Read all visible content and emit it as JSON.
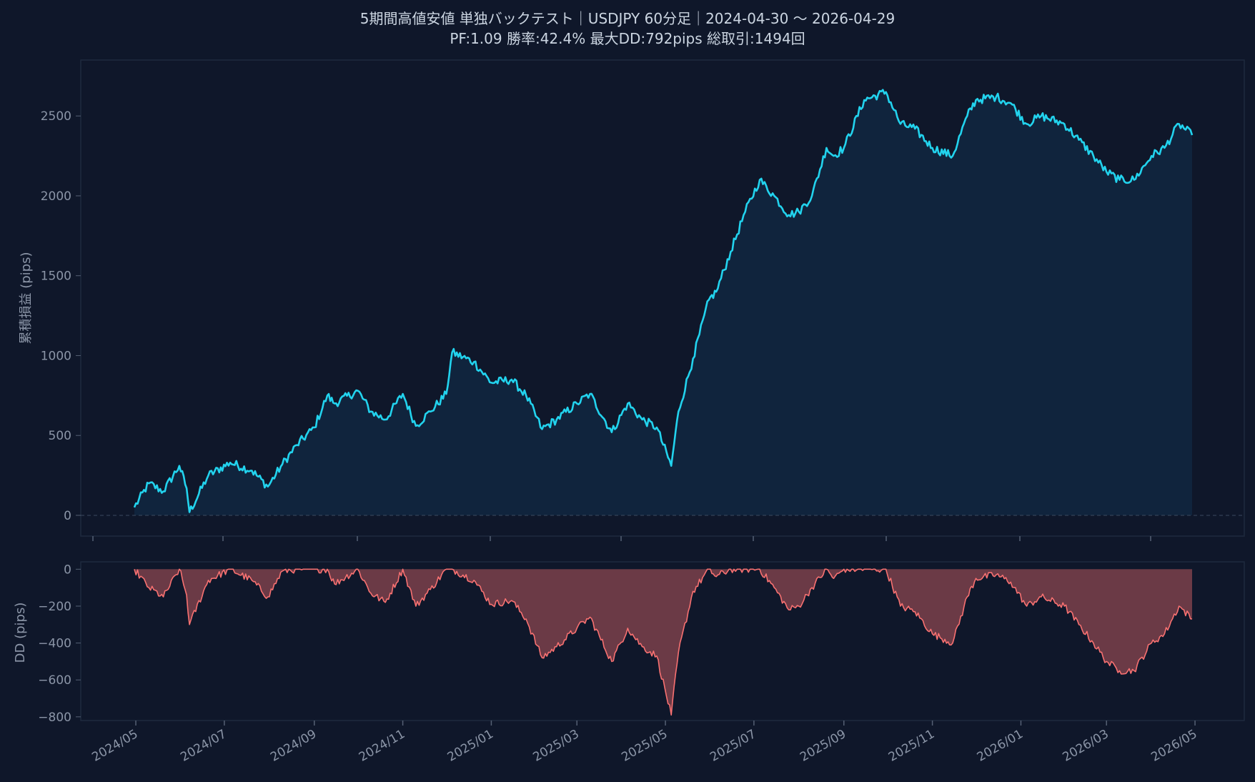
{
  "header": {
    "title": "5期間高値安値 単独バックテスト｜USDJPY 60分足｜2024-04-30 〜 2026-04-29",
    "subtitle": "PF:1.09  勝率:42.4%  最大DD:792pips  総取引:1494回"
  },
  "colors": {
    "background": "#0f172a",
    "equity_line": "#22d3ee",
    "equity_fill": "#10243d",
    "dd_line": "#f87171",
    "dd_fill": "#6b3a46",
    "frame": "#1e2a3e",
    "tick_text": "#8b95a7",
    "zero_line": "#3b4a60"
  },
  "chart_data": [
    {
      "type": "area",
      "name": "equity",
      "ylabel": "累積損益 (pips)",
      "ylim": [
        -130,
        2850
      ],
      "yticks": [
        0,
        500,
        1000,
        1500,
        2000,
        2500
      ],
      "ytick_labels": [
        "0",
        "500",
        "1000",
        "1500",
        "2000",
        "2500"
      ],
      "x": [
        "2024-04-30",
        "2024-05-10",
        "2024-05-20",
        "2024-05-31",
        "2024-06-05",
        "2024-06-07",
        "2024-06-20",
        "2024-07-05",
        "2024-07-20",
        "2024-07-31",
        "2024-08-10",
        "2024-08-20",
        "2024-09-01",
        "2024-09-10",
        "2024-09-15",
        "2024-10-01",
        "2024-10-10",
        "2024-10-20",
        "2024-11-01",
        "2024-11-10",
        "2024-11-20",
        "2024-12-01",
        "2024-12-05",
        "2024-12-20",
        "2025-01-01",
        "2025-01-15",
        "2025-01-25",
        "2025-02-05",
        "2025-02-15",
        "2025-03-01",
        "2025-03-10",
        "2025-03-25",
        "2025-04-05",
        "2025-04-15",
        "2025-04-25",
        "2025-05-05",
        "2025-05-10",
        "2025-05-20",
        "2025-05-31",
        "2025-06-05",
        "2025-06-15",
        "2025-06-25",
        "2025-07-05",
        "2025-07-15",
        "2025-07-25",
        "2025-08-01",
        "2025-08-10",
        "2025-08-20",
        "2025-08-25",
        "2025-09-01",
        "2025-09-15",
        "2025-09-30",
        "2025-10-10",
        "2025-10-20",
        "2025-11-01",
        "2025-11-15",
        "2025-11-25",
        "2025-12-01",
        "2025-12-15",
        "2025-12-25",
        "2026-01-05",
        "2026-01-15",
        "2026-01-31",
        "2026-02-10",
        "2026-02-20",
        "2026-03-01",
        "2026-03-10",
        "2026-03-20",
        "2026-04-01",
        "2026-04-10",
        "2026-04-20",
        "2026-04-29"
      ],
      "values": [
        50,
        200,
        150,
        310,
        170,
        20,
        250,
        330,
        280,
        180,
        320,
        440,
        550,
        750,
        700,
        780,
        650,
        600,
        760,
        560,
        650,
        760,
        1020,
        960,
        830,
        850,
        750,
        540,
        600,
        700,
        760,
        520,
        700,
        600,
        550,
        310,
        650,
        980,
        1350,
        1400,
        1650,
        1900,
        2100,
        2000,
        1880,
        1900,
        2000,
        2300,
        2250,
        2300,
        2600,
        2650,
        2450,
        2420,
        2300,
        2250,
        2500,
        2600,
        2620,
        2580,
        2450,
        2500,
        2450,
        2350,
        2250,
        2150,
        2100,
        2100,
        2250,
        2300,
        2450,
        2380
      ]
    },
    {
      "type": "area",
      "name": "drawdown",
      "ylabel": "DD (pips)",
      "ylim": [
        -820,
        40
      ],
      "yticks": [
        0,
        -200,
        -400,
        -600,
        -800
      ],
      "ytick_labels": [
        "0",
        "−200",
        "−400",
        "−600",
        "−800"
      ],
      "xtick_labels": [
        "2024/05",
        "2024/07",
        "2024/09",
        "2024/11",
        "2025/01",
        "2025/03",
        "2025/05",
        "2025/07",
        "2025/09",
        "2025/11",
        "2026/01",
        "2026/03",
        "2026/05"
      ],
      "x": [
        "2024-04-30",
        "2024-05-10",
        "2024-05-20",
        "2024-05-31",
        "2024-06-05",
        "2024-06-07",
        "2024-06-20",
        "2024-07-05",
        "2024-07-20",
        "2024-07-31",
        "2024-08-10",
        "2024-08-20",
        "2024-09-01",
        "2024-09-10",
        "2024-09-15",
        "2024-10-01",
        "2024-10-10",
        "2024-10-20",
        "2024-11-01",
        "2024-11-10",
        "2024-11-20",
        "2024-12-01",
        "2024-12-05",
        "2024-12-20",
        "2025-01-01",
        "2025-01-15",
        "2025-01-25",
        "2025-02-05",
        "2025-02-15",
        "2025-03-01",
        "2025-03-10",
        "2025-03-25",
        "2025-04-05",
        "2025-04-15",
        "2025-04-25",
        "2025-05-05",
        "2025-05-10",
        "2025-05-20",
        "2025-05-31",
        "2025-06-05",
        "2025-06-15",
        "2025-06-25",
        "2025-07-05",
        "2025-07-15",
        "2025-07-25",
        "2025-08-01",
        "2025-08-10",
        "2025-08-20",
        "2025-08-25",
        "2025-09-01",
        "2025-09-15",
        "2025-09-30",
        "2025-10-10",
        "2025-10-20",
        "2025-11-01",
        "2025-11-15",
        "2025-11-25",
        "2025-12-01",
        "2025-12-15",
        "2025-12-25",
        "2026-01-05",
        "2026-01-15",
        "2026-01-31",
        "2026-02-10",
        "2026-02-20",
        "2026-03-01",
        "2026-03-10",
        "2026-03-20",
        "2026-04-01",
        "2026-04-10",
        "2026-04-20",
        "2026-04-29"
      ],
      "values": [
        0,
        -100,
        -150,
        0,
        -140,
        -300,
        -60,
        0,
        -60,
        -150,
        -10,
        0,
        0,
        0,
        -80,
        0,
        -130,
        -180,
        0,
        -200,
        -110,
        0,
        0,
        -60,
        -190,
        -170,
        -270,
        -480,
        -420,
        -320,
        -260,
        -500,
        -320,
        -420,
        -470,
        -790,
        -450,
        -120,
        0,
        -40,
        0,
        0,
        0,
        -100,
        -220,
        -200,
        -100,
        0,
        -50,
        0,
        0,
        0,
        -200,
        -230,
        -350,
        -400,
        -150,
        -50,
        -30,
        -70,
        -200,
        -150,
        -200,
        -300,
        -400,
        -500,
        -550,
        -550,
        -400,
        -350,
        -200,
        -270
      ]
    }
  ]
}
